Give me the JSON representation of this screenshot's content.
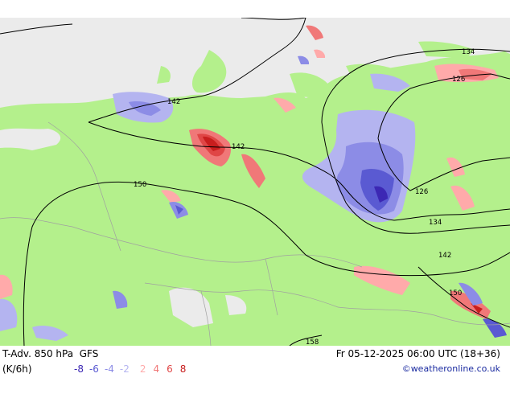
{
  "legend": {
    "title": "T-Adv. 850 hPa",
    "model": "GFS",
    "units": "(K/6h)",
    "negative_ticks": [
      {
        "label": "-8",
        "color": "#3c28b4"
      },
      {
        "label": "-6",
        "color": "#5a5ad2"
      },
      {
        "label": "-4",
        "color": "#8c8ce6"
      },
      {
        "label": "-2",
        "color": "#b4b4f0"
      }
    ],
    "positive_ticks": [
      {
        "label": "2",
        "color": "#ffaaaa"
      },
      {
        "label": "4",
        "color": "#f07878"
      },
      {
        "label": "6",
        "color": "#e04646"
      },
      {
        "label": "8",
        "color": "#c81e1e"
      }
    ],
    "valid_time": "Fr 05-12-2025 06:00 UTC (18+36)",
    "credit": "©weatheronline.co.uk"
  },
  "contours": {
    "labels": [
      "142",
      "142",
      "150",
      "134",
      "126",
      "126",
      "134",
      "142",
      "150",
      "158"
    ]
  },
  "colors": {
    "land": "#b4f08c",
    "sea_ice": "#ebebeb",
    "border": "#a0a0a0",
    "contour": "#000000"
  }
}
